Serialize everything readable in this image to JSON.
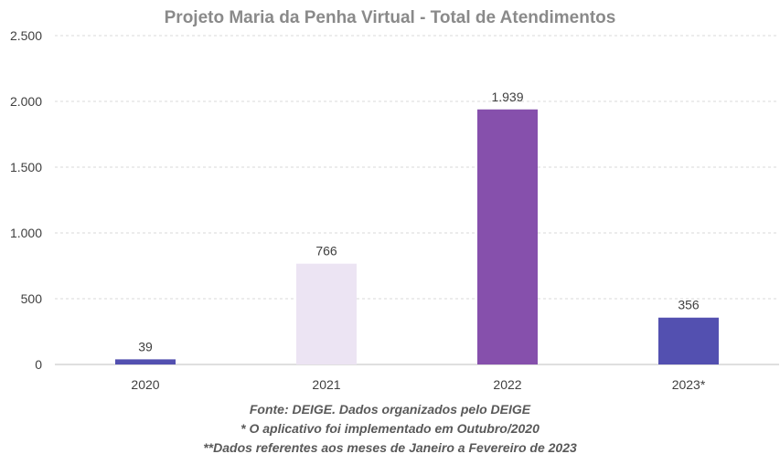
{
  "chart_data": {
    "type": "bar",
    "title": "Projeto Maria da Penha Virtual - Total de Atendimentos",
    "categories": [
      "2020",
      "2021",
      "2022",
      "2023*"
    ],
    "values": [
      39,
      766,
      1939,
      356
    ],
    "value_labels": [
      "39",
      "766",
      "1.939",
      "356"
    ],
    "bar_colors": [
      "#5350b0",
      "#ece4f3",
      "#8650ac",
      "#5350b0"
    ],
    "ylim": [
      0,
      2500
    ],
    "yticks": [
      0,
      500,
      1000,
      1500,
      2000,
      2500
    ],
    "ytick_labels": [
      "0",
      "500",
      "1.000",
      "1.500",
      "2.000",
      "2.500"
    ],
    "grid": true,
    "xlabel": "",
    "ylabel": ""
  },
  "footer": {
    "line1": "Fonte: DEIGE. Dados organizados pelo DEIGE",
    "line2": "* O aplicativo foi implementado em Outubro/2020",
    "line3": "**Dados referentes aos meses de Janeiro a Fevereiro de 2023"
  }
}
